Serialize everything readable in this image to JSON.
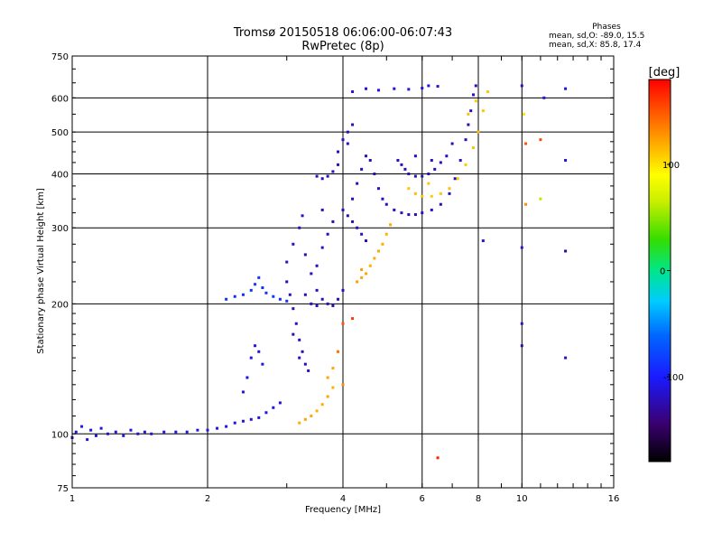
{
  "chart_data": {
    "type": "scatter",
    "title": "Tromsø 20150518 06:06:00-06:07:43",
    "subtitle": "RwPretec (8p)",
    "xlabel": "Frequency [MHz]",
    "ylabel": "Stationary phase Virtual Height [km]",
    "x_scale": "log",
    "y_scale": "log",
    "xlim": [
      1,
      16
    ],
    "ylim": [
      75,
      750
    ],
    "x_ticks": [
      1,
      2,
      4,
      6,
      8,
      10,
      16
    ],
    "x_tick_labels": [
      "1",
      "2",
      "4",
      "6",
      "8",
      "10",
      "16"
    ],
    "y_ticks": [
      75,
      100,
      200,
      300,
      400,
      500,
      600,
      750
    ],
    "y_tick_labels": [
      "75",
      "100",
      "200",
      "300",
      "400",
      "500",
      "600",
      "750"
    ],
    "grid": true,
    "phase_box": {
      "heading": "Phases",
      "line1": "mean, sd,O: -89.0, 15.5",
      "line2": "mean, sd,X:  85.8, 17.4"
    },
    "colorbar": {
      "label": "[deg]",
      "range": [
        -180,
        180
      ],
      "tick_values": [
        100,
        0,
        -100
      ],
      "tick_labels": [
        "100",
        "0",
        "-100"
      ]
    },
    "series": [
      {
        "points": [
          [
            1.0,
            98,
            -110
          ],
          [
            1.02,
            101,
            -112
          ],
          [
            1.05,
            104,
            -108
          ],
          [
            1.08,
            97,
            -115
          ],
          [
            1.1,
            102,
            -110
          ],
          [
            1.13,
            99,
            -112
          ],
          [
            1.16,
            103,
            -108
          ],
          [
            1.2,
            100,
            -110
          ],
          [
            1.25,
            101,
            -112
          ],
          [
            1.3,
            99,
            -110
          ],
          [
            1.35,
            102,
            -109
          ],
          [
            1.4,
            100,
            -111
          ],
          [
            1.45,
            101,
            -112
          ],
          [
            1.5,
            100,
            -110
          ],
          [
            1.6,
            101,
            -111
          ],
          [
            1.7,
            101,
            -110
          ],
          [
            1.8,
            101,
            -112
          ],
          [
            1.9,
            102,
            -111
          ],
          [
            2.0,
            102,
            -110
          ],
          [
            2.1,
            103,
            -112
          ],
          [
            2.2,
            104,
            -110
          ],
          [
            2.3,
            106,
            -111
          ],
          [
            2.4,
            107,
            -112
          ],
          [
            2.5,
            108,
            -110
          ],
          [
            2.6,
            109,
            -112
          ],
          [
            2.7,
            112,
            -110
          ],
          [
            2.8,
            115,
            -112
          ],
          [
            2.9,
            118,
            -110
          ]
        ]
      },
      {
        "points": [
          [
            2.4,
            210,
            -90
          ],
          [
            2.5,
            215,
            -88
          ],
          [
            2.55,
            222,
            -85
          ],
          [
            2.6,
            230,
            -88
          ],
          [
            2.65,
            218,
            -90
          ],
          [
            2.7,
            212,
            -88
          ],
          [
            2.8,
            208,
            -86
          ],
          [
            2.9,
            205,
            -90
          ],
          [
            3.0,
            203,
            -88
          ],
          [
            2.2,
            205,
            -90
          ],
          [
            2.3,
            208,
            -92
          ]
        ]
      },
      {
        "points": [
          [
            2.4,
            125,
            -112
          ],
          [
            2.45,
            135,
            -110
          ],
          [
            2.5,
            150,
            -108
          ],
          [
            2.55,
            160,
            -110
          ],
          [
            2.6,
            155,
            -112
          ],
          [
            2.65,
            145,
            -110
          ]
        ]
      },
      {
        "points": [
          [
            3.0,
            225,
            -125
          ],
          [
            3.05,
            210,
            -120
          ],
          [
            3.1,
            195,
            -120
          ],
          [
            3.15,
            180,
            -118
          ],
          [
            3.2,
            165,
            -120
          ],
          [
            3.25,
            155,
            -122
          ],
          [
            3.3,
            145,
            -120
          ],
          [
            3.35,
            140,
            -118
          ],
          [
            3.1,
            170,
            -125
          ],
          [
            3.2,
            150,
            -120
          ],
          [
            3.0,
            250,
            -118
          ],
          [
            3.1,
            275,
            -120
          ],
          [
            3.2,
            300,
            -122
          ],
          [
            3.25,
            320,
            -118
          ],
          [
            3.3,
            260,
            -120
          ],
          [
            3.4,
            235,
            -118
          ],
          [
            3.5,
            215,
            -122
          ],
          [
            3.6,
            205,
            -120
          ],
          [
            3.7,
            200,
            -118
          ],
          [
            3.8,
            198,
            -120
          ],
          [
            3.9,
            205,
            -122
          ],
          [
            4.0,
            215,
            -120
          ],
          [
            3.4,
            200,
            -120
          ],
          [
            3.5,
            198,
            -118
          ],
          [
            3.3,
            210,
            -122
          ],
          [
            3.5,
            245,
            -120
          ],
          [
            3.6,
            270,
            -118
          ],
          [
            3.7,
            290,
            -120
          ],
          [
            3.8,
            310,
            -122
          ],
          [
            3.6,
            330,
            -120
          ]
        ]
      },
      {
        "points": [
          [
            3.5,
            395,
            -118
          ],
          [
            3.6,
            390,
            -120
          ],
          [
            3.7,
            395,
            -122
          ],
          [
            3.8,
            405,
            -118
          ],
          [
            3.9,
            420,
            -120
          ],
          [
            3.9,
            450,
            -122
          ],
          [
            4.0,
            480,
            -118
          ],
          [
            4.1,
            500,
            -120
          ],
          [
            4.2,
            520,
            -122
          ],
          [
            4.1,
            470,
            -118
          ]
        ]
      },
      {
        "points": [
          [
            4.0,
            330,
            -125
          ],
          [
            4.1,
            320,
            -122
          ],
          [
            4.2,
            310,
            -120
          ],
          [
            4.3,
            300,
            -120
          ],
          [
            4.4,
            290,
            -118
          ],
          [
            4.5,
            280,
            -120
          ],
          [
            4.2,
            350,
            -122
          ],
          [
            4.3,
            380,
            -120
          ],
          [
            4.4,
            410,
            -118
          ],
          [
            4.5,
            440,
            -120
          ],
          [
            4.6,
            430,
            -122
          ],
          [
            4.7,
            400,
            -120
          ],
          [
            4.8,
            370,
            -118
          ],
          [
            4.9,
            350,
            -120
          ],
          [
            5.0,
            340,
            -122
          ],
          [
            5.2,
            330,
            -120
          ],
          [
            5.4,
            325,
            -118
          ],
          [
            5.6,
            322,
            -120
          ],
          [
            5.8,
            322,
            -122
          ],
          [
            6.0,
            325,
            -120
          ],
          [
            6.3,
            330,
            -118
          ],
          [
            6.6,
            340,
            -120
          ],
          [
            6.9,
            360,
            -122
          ],
          [
            7.1,
            390,
            -120
          ],
          [
            7.3,
            430,
            -118
          ],
          [
            7.5,
            480,
            -120
          ],
          [
            7.6,
            520,
            -122
          ],
          [
            7.7,
            560,
            -120
          ],
          [
            7.8,
            610,
            -118
          ],
          [
            7.9,
            640,
            -120
          ]
        ]
      },
      {
        "points": [
          [
            5.3,
            430,
            -118
          ],
          [
            5.4,
            420,
            -120
          ],
          [
            5.5,
            410,
            -122
          ],
          [
            5.6,
            400,
            -120
          ],
          [
            5.8,
            395,
            -118
          ],
          [
            6.0,
            395,
            -120
          ],
          [
            6.2,
            400,
            -122
          ],
          [
            6.4,
            410,
            -120
          ],
          [
            6.6,
            425,
            -118
          ],
          [
            6.8,
            440,
            -120
          ],
          [
            7.0,
            470,
            -122
          ],
          [
            5.8,
            440,
            -120
          ],
          [
            6.3,
            430,
            -118
          ]
        ]
      },
      {
        "points": [
          [
            4.2,
            620,
            -110
          ],
          [
            4.5,
            630,
            -112
          ],
          [
            4.8,
            625,
            -110
          ],
          [
            5.2,
            630,
            -112
          ],
          [
            5.6,
            628,
            -110
          ],
          [
            6.0,
            632,
            -112
          ],
          [
            6.2,
            640,
            -110
          ],
          [
            6.5,
            638,
            -112
          ]
        ]
      },
      {
        "points": [
          [
            3.2,
            106,
            120
          ],
          [
            3.3,
            108,
            122
          ],
          [
            3.4,
            110,
            120
          ],
          [
            3.5,
            113,
            118
          ],
          [
            3.6,
            117,
            120
          ],
          [
            3.7,
            122,
            122
          ],
          [
            3.8,
            128,
            118
          ],
          [
            3.7,
            135,
            122
          ],
          [
            3.8,
            142,
            120
          ]
        ]
      },
      {
        "points": [
          [
            4.3,
            225,
            125
          ],
          [
            4.4,
            230,
            122
          ],
          [
            4.5,
            235,
            120
          ],
          [
            4.6,
            245,
            118
          ],
          [
            4.7,
            255,
            120
          ],
          [
            4.8,
            265,
            122
          ],
          [
            4.9,
            275,
            120
          ],
          [
            5.0,
            290,
            118
          ],
          [
            5.1,
            305,
            120
          ],
          [
            4.4,
            240,
            125
          ]
        ]
      },
      {
        "points": [
          [
            5.6,
            370,
            110
          ],
          [
            5.8,
            360,
            112
          ],
          [
            6.0,
            355,
            110
          ],
          [
            6.3,
            355,
            108
          ],
          [
            6.6,
            360,
            110
          ],
          [
            6.9,
            370,
            112
          ],
          [
            7.2,
            390,
            110
          ],
          [
            7.5,
            420,
            108
          ],
          [
            7.8,
            460,
            110
          ],
          [
            8.0,
            500,
            112
          ],
          [
            8.2,
            560,
            110
          ],
          [
            8.4,
            620,
            108
          ],
          [
            7.6,
            550,
            112
          ],
          [
            7.9,
            590,
            110
          ],
          [
            6.2,
            380,
            110
          ]
        ]
      },
      {
        "points": [
          [
            4.0,
            180,
            150
          ],
          [
            4.2,
            185,
            160
          ],
          [
            3.9,
            155,
            140
          ],
          [
            4.0,
            130,
            130
          ],
          [
            6.5,
            88,
            170
          ],
          [
            10.0,
            640,
            -120
          ],
          [
            10.2,
            470,
            150
          ],
          [
            11.0,
            480,
            155
          ],
          [
            11.2,
            600,
            -110
          ],
          [
            12.5,
            630,
            -110
          ],
          [
            12.5,
            430,
            -112
          ],
          [
            12.5,
            265,
            -130
          ],
          [
            12.5,
            150,
            -115
          ],
          [
            11.0,
            350,
            60
          ],
          [
            10.0,
            270,
            -115
          ],
          [
            10.0,
            180,
            -118
          ],
          [
            10.0,
            160,
            -130
          ],
          [
            8.2,
            280,
            -110
          ],
          [
            10.1,
            550,
            100
          ],
          [
            10.2,
            340,
            130
          ]
        ]
      }
    ]
  }
}
